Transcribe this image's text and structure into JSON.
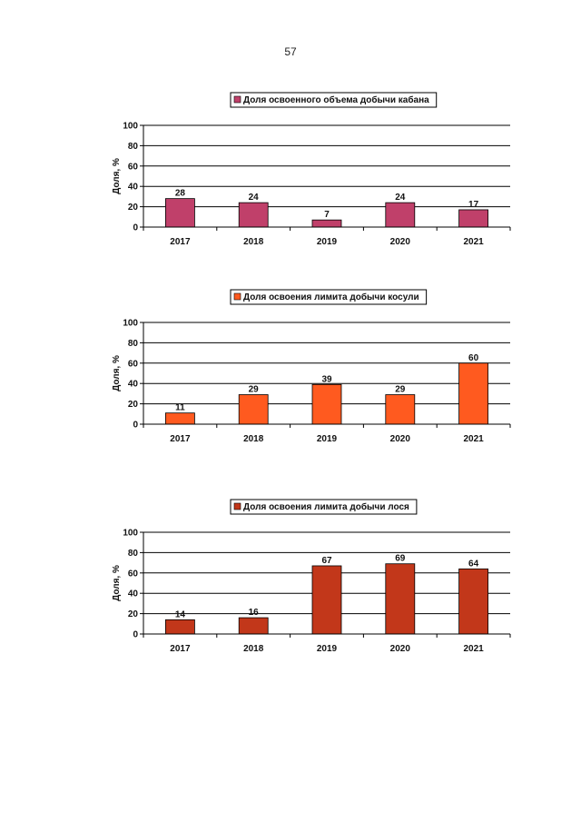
{
  "page": {
    "number": "57"
  },
  "chart_data": [
    {
      "type": "bar",
      "title": "Доля освоенного объема добычи кабана",
      "legend": "Доля освоенного объема добычи кабана",
      "categories": [
        "2017",
        "2018",
        "2019",
        "2020",
        "2021"
      ],
      "values": [
        28,
        24,
        7,
        24,
        17
      ],
      "ylabel": "Доля, %",
      "xlabel": "",
      "ylim": [
        0,
        100
      ],
      "yticks": [
        "0",
        "20",
        "40",
        "60",
        "80",
        "100"
      ],
      "color": "#c0406a",
      "grid": true,
      "legend_position": "top"
    },
    {
      "type": "bar",
      "title": "Доля освоения лимита добычи косули",
      "legend": "Доля освоения лимита добычи косули",
      "categories": [
        "2017",
        "2018",
        "2019",
        "2020",
        "2021"
      ],
      "values": [
        11,
        29,
        39,
        29,
        60
      ],
      "ylabel": "Доля, %",
      "xlabel": "",
      "ylim": [
        0,
        100
      ],
      "yticks": [
        "0",
        "20",
        "40",
        "60",
        "80",
        "100"
      ],
      "color": "#ff5a1f",
      "grid": true,
      "legend_position": "top"
    },
    {
      "type": "bar",
      "title": "Доля освоения лимита добычи лося",
      "legend": "Доля освоения лимита добычи лося",
      "categories": [
        "2017",
        "2018",
        "2019",
        "2020",
        "2021"
      ],
      "values": [
        14,
        16,
        67,
        69,
        64
      ],
      "ylabel": "Доля, %",
      "xlabel": "",
      "ylim": [
        0,
        100
      ],
      "yticks": [
        "0",
        "20",
        "40",
        "60",
        "80",
        "100"
      ],
      "color": "#c2371a",
      "grid": true,
      "legend_position": "top"
    }
  ]
}
